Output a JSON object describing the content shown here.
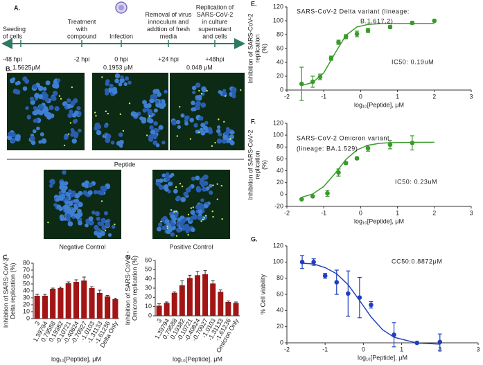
{
  "panel_labels": [
    "A.",
    "B.",
    "C.",
    "D.",
    "E.",
    "F.",
    "G."
  ],
  "timeline": {
    "events": [
      {
        "label": [
          "Seeding",
          "of cells"
        ],
        "time": "-48 hpi"
      },
      {
        "label": [
          "Treatment",
          "with",
          "compound"
        ],
        "time": "-2 hpi"
      },
      {
        "label": [
          "Infection"
        ],
        "time": "0 hpi"
      },
      {
        "label": [
          "Removal of virus",
          "innoculum and",
          "addtion of fresh",
          "media"
        ],
        "time": "+24 hpi"
      },
      {
        "label": [
          "Replication of",
          "SARS-CoV-2",
          "in culture",
          "supernatant",
          "and cells"
        ],
        "time": "+48hpi"
      }
    ]
  },
  "images": {
    "top": [
      "1.5625μM",
      "0.1953 μM",
      "0.048 μM"
    ],
    "peptide_label": "Peptide",
    "bottom": [
      "Negative Control",
      "Positive Control"
    ]
  },
  "chart_data": [
    {
      "type": "bar",
      "ylabel": [
        "Inhibition of SARS-CoV-2 -",
        "Delta replication (%)"
      ],
      "xlabel": "log₁₀[Peptide], μM",
      "categories": [
        "3",
        "1.39794",
        "0.79588",
        "0.19382",
        "-0.10721",
        "-0.40824",
        "-0.70927",
        "-1.0103",
        "-1.31133",
        "-1.61236",
        "Delta Only"
      ],
      "values": [
        33,
        33,
        43,
        44,
        51,
        53,
        55,
        44,
        37,
        32,
        28
      ],
      "errors": [
        2,
        2,
        1,
        1.5,
        2,
        3,
        5,
        2,
        4,
        1.5,
        1.5
      ],
      "color": "#a31515",
      "ylim": [
        0,
        80
      ],
      "yticks": [
        0,
        10,
        20,
        30,
        40,
        50,
        60,
        70,
        80
      ]
    },
    {
      "type": "bar",
      "ylabel": [
        "Inhibition of SARS-CoV-2 -",
        "Omicron replication (%)"
      ],
      "xlabel": "log₁₀[Peptide], μM",
      "categories": [
        "3",
        "1.39794",
        "0.79588",
        "0.19382",
        "-0.10721",
        "-0.40824",
        "-0.70927",
        "-1.0103",
        "-1.31133",
        "-1.61236",
        "Omicron Only"
      ],
      "values": [
        11,
        14,
        25,
        33,
        41,
        44,
        45,
        35,
        26,
        15,
        14
      ],
      "errors": [
        2,
        1,
        1,
        5,
        3,
        4,
        4,
        3,
        2,
        1,
        1
      ],
      "color": "#a31515",
      "ylim": [
        0,
        60
      ],
      "yticks": [
        0,
        10,
        20,
        30,
        40,
        50,
        60
      ]
    },
    {
      "type": "scatter",
      "title": [
        "SARS-CoV-2 Delta variant (lineage:",
        "B.1.617.2)"
      ],
      "annotation": "IC50: 0.19uM",
      "ylabel": [
        "Inhibition of SARS-CoV-2",
        "replication",
        "(%)"
      ],
      "xlabel": "log₁₀[Peptide], μM",
      "x": [
        -1.6,
        -1.3,
        -1.1,
        -0.8,
        -0.6,
        -0.4,
        -0.1,
        0.2,
        0.8,
        1.4,
        2.0
      ],
      "values": [
        9,
        12,
        19,
        46,
        69,
        77,
        81,
        86,
        91,
        97,
        100
      ],
      "errors": [
        24,
        8,
        4,
        3,
        3,
        3,
        4,
        3,
        2,
        2,
        1
      ],
      "color": "#3a9a2a",
      "fit": {
        "x": [
          -1.6,
          -1.3,
          -1.0,
          -0.7,
          -0.4,
          -0.1,
          0.2,
          0.5,
          0.8,
          1.4,
          2.0
        ],
        "values": [
          6.6,
          10.9,
          24.7,
          52.6,
          79,
          91.1,
          94.7,
          95.7,
          95.9,
          96,
          96
        ]
      },
      "xlim": [
        -2,
        3
      ],
      "xticks": [
        -2,
        -1,
        0,
        1,
        2,
        3
      ],
      "ylim": [
        0,
        120
      ],
      "yticks": [
        0,
        20,
        40,
        60,
        80,
        100,
        120
      ]
    },
    {
      "type": "scatter",
      "title": [
        "SARS-CoV-2 Omicron variant",
        "(lineage: BA.1.529)"
      ],
      "annotation": "IC50: 0.23uM",
      "ylabel": [
        "Inhibition of SARS-CoV-2",
        "replication",
        "(%)"
      ],
      "xlabel": "log₁₀[Peptide], μM",
      "x": [
        -1.6,
        -1.3,
        -0.9,
        -0.6,
        -0.4,
        -0.1,
        0.2,
        0.8,
        1.4
      ],
      "values": [
        -8,
        -3,
        2,
        37,
        53,
        61,
        78,
        84,
        87
      ],
      "errors": [
        1,
        1,
        5,
        6,
        2,
        2,
        5,
        7,
        12
      ],
      "color": "#3a9a2a",
      "fit": {
        "x": [
          -1.6,
          -1.3,
          -1.0,
          -0.7,
          -0.4,
          -0.1,
          0.2,
          0.5,
          0.8,
          1.4,
          2.0
        ],
        "values": [
          -4.6,
          0.9,
          13.5,
          35,
          58.9,
          75.1,
          83,
          86.2,
          87.3,
          87.9,
          88
        ]
      },
      "xlim": [
        -2,
        3
      ],
      "xticks": [
        -2,
        -1,
        0,
        1,
        2,
        3
      ],
      "ylim": [
        -20,
        120
      ],
      "yticks": [
        -20,
        0,
        20,
        40,
        60,
        80,
        100,
        120
      ]
    },
    {
      "type": "scatter",
      "annotation": "CC50:0.8872μM",
      "ylabel": [
        "% Cell viability"
      ],
      "xlabel": "log₁₀[Peptide], μM",
      "x": [
        -1.6,
        -1.3,
        -1.0,
        -0.7,
        -0.4,
        -0.1,
        0.2,
        0.8,
        1.4,
        2.0
      ],
      "values": [
        100,
        100,
        83,
        75,
        61,
        56,
        47,
        10,
        0,
        1
      ],
      "errors": [
        8,
        4,
        3,
        15,
        28,
        25,
        4,
        15,
        1,
        10
      ],
      "color": "#1f3fbf",
      "fit": {
        "x": [
          -1.6,
          -1.3,
          -1.0,
          -0.7,
          -0.4,
          -0.1,
          0.2,
          0.5,
          0.8,
          1.4,
          2.0
        ],
        "values": [
          98.6,
          97.6,
          93.1,
          85.5,
          71.9,
          52.5,
          32.1,
          16.3,
          6.9,
          -0.2,
          -1.6
        ]
      },
      "xlim": [
        -2,
        3
      ],
      "xticks": [
        -2,
        -1,
        0,
        1,
        2,
        3
      ],
      "ylim": [
        0,
        120
      ],
      "yticks": [
        0,
        20,
        40,
        60,
        80,
        100,
        120
      ]
    }
  ]
}
